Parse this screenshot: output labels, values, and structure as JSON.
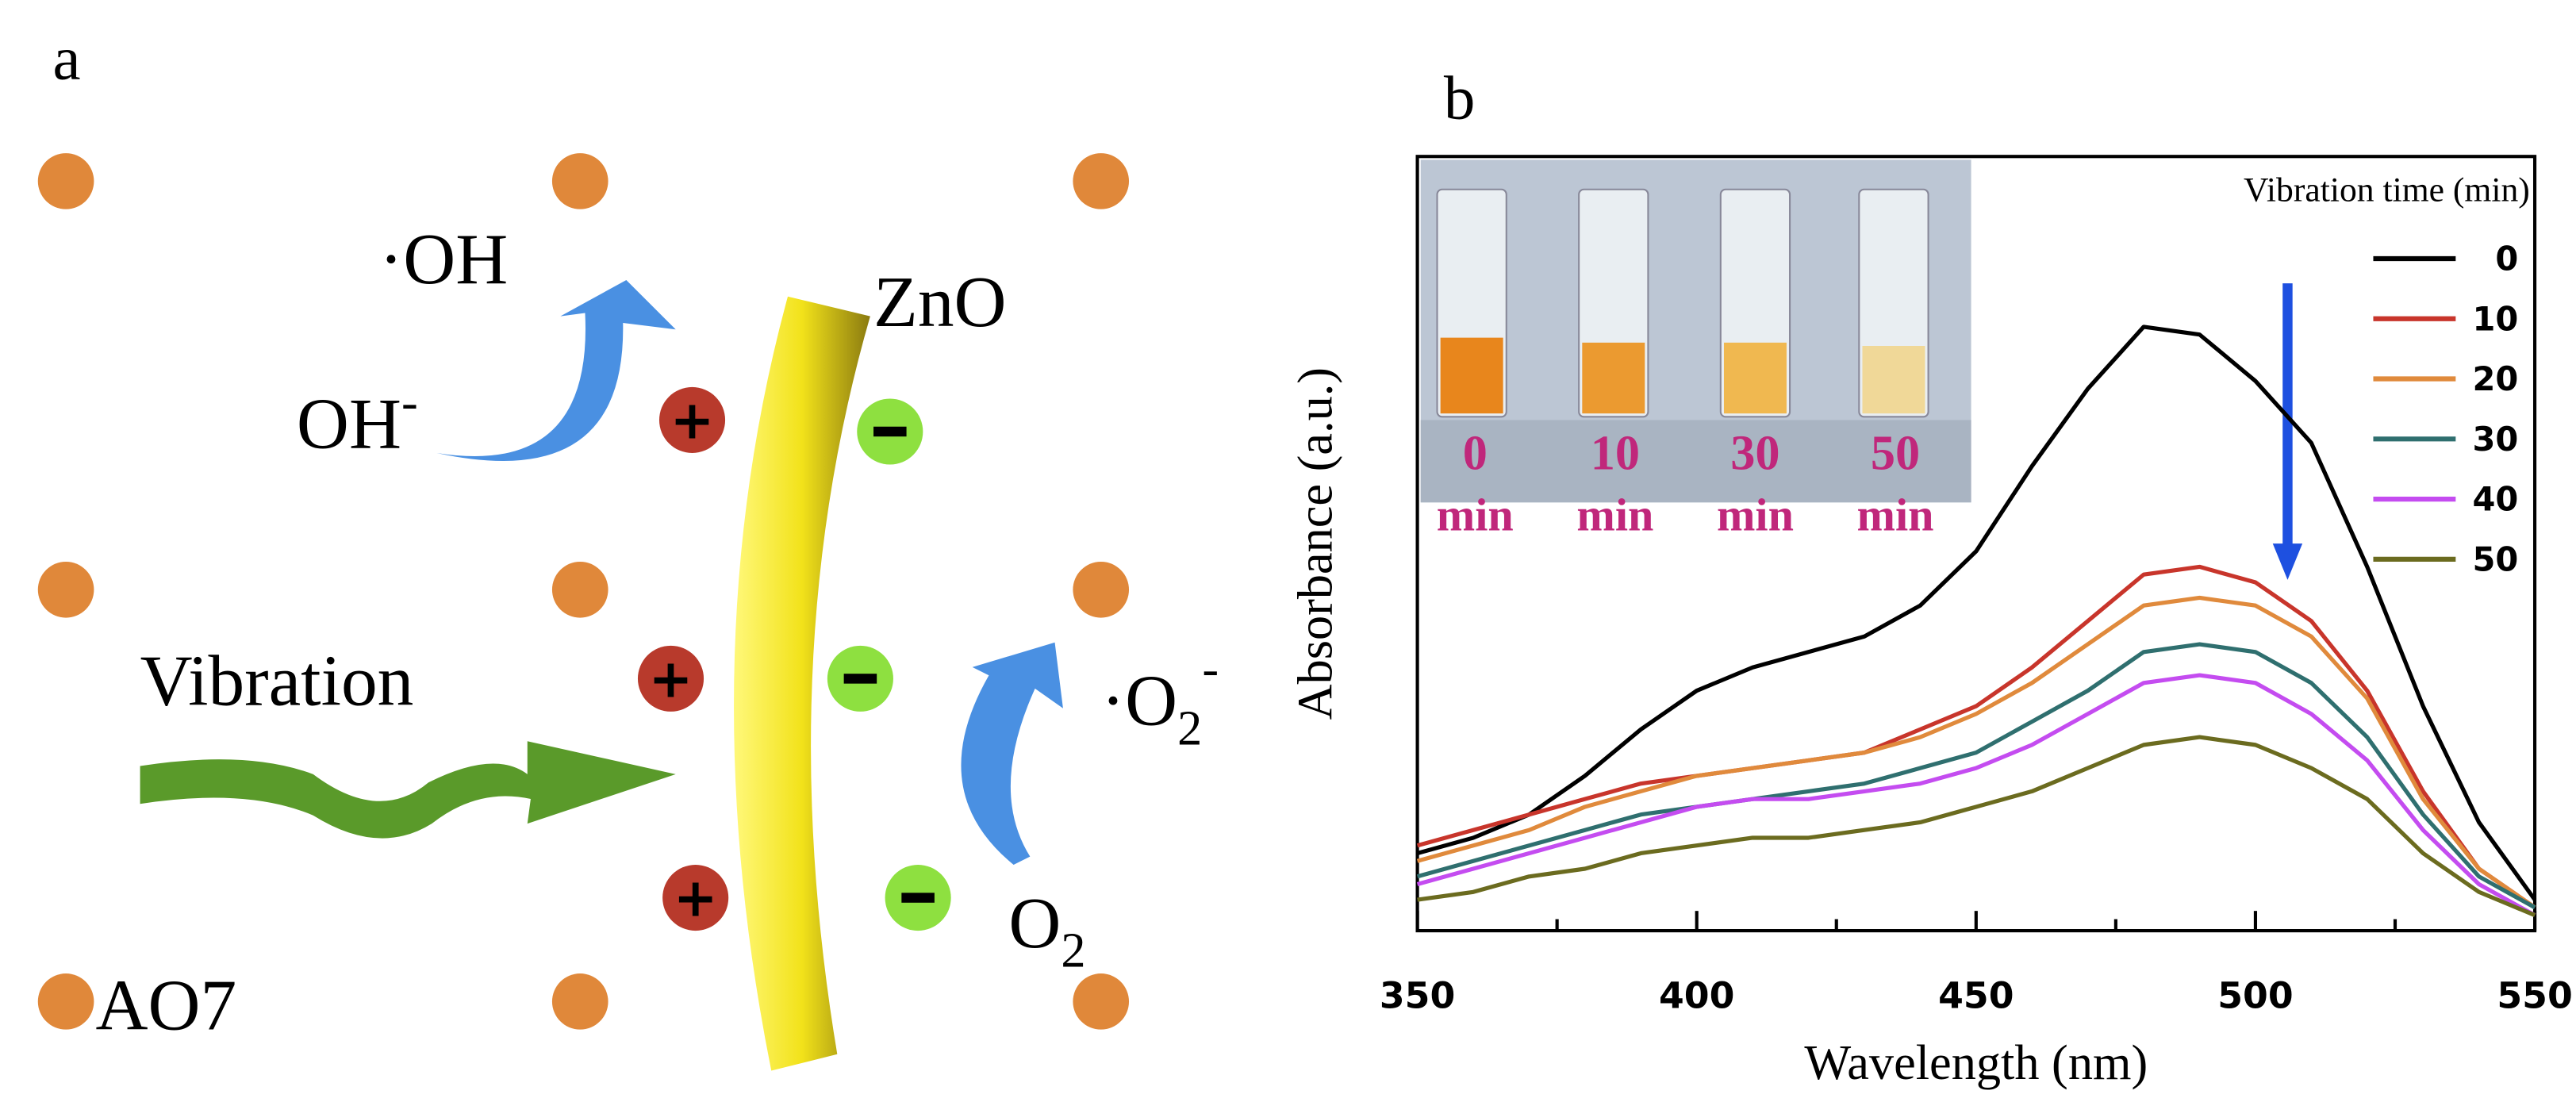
{
  "panel_a": {
    "label": "a",
    "hydroxyl": {
      "text": "·OH"
    },
    "hydroxide": {
      "text": "OH",
      "sup": "-"
    },
    "rod": "ZnO",
    "drive": "Vibration",
    "superoxide": {
      "text": "·O",
      "sub": "2",
      "sup": "-"
    },
    "oxygen": {
      "text": "O",
      "sub": "2"
    },
    "dye": "AO7"
  },
  "chart_data": {
    "type": "line",
    "panel_label": "b",
    "x_label": "Wavelength (nm)",
    "y_label": "Absorbance (a.u.)",
    "legend_title": "Vibration time (min)",
    "inset_labels": [
      [
        "0",
        "min"
      ],
      [
        "10",
        "min"
      ],
      [
        "30",
        "min"
      ],
      [
        "50",
        "min"
      ]
    ],
    "x": [
      350,
      360,
      370,
      380,
      390,
      400,
      410,
      420,
      430,
      440,
      450,
      460,
      470,
      480,
      490,
      500,
      510,
      520,
      530,
      540,
      550
    ],
    "xlim": [
      350,
      550
    ],
    "xticks": [
      350,
      400,
      450,
      500,
      550
    ],
    "xminorticks": [
      375,
      425,
      475,
      525
    ],
    "ylim": [
      0,
      1
    ],
    "series": [
      {
        "name": "0",
        "color": "#000000",
        "values": [
          0.1,
          0.12,
          0.15,
          0.2,
          0.26,
          0.31,
          0.34,
          0.36,
          0.38,
          0.42,
          0.49,
          0.6,
          0.7,
          0.78,
          0.77,
          0.71,
          0.63,
          0.47,
          0.29,
          0.14,
          0.04
        ]
      },
      {
        "name": "10",
        "color": "#c8352b",
        "values": [
          0.11,
          0.13,
          0.15,
          0.17,
          0.19,
          0.2,
          0.21,
          0.22,
          0.23,
          0.26,
          0.29,
          0.34,
          0.4,
          0.46,
          0.47,
          0.45,
          0.4,
          0.31,
          0.18,
          0.08,
          0.03
        ]
      },
      {
        "name": "20",
        "color": "#e08a3c",
        "values": [
          0.09,
          0.11,
          0.13,
          0.16,
          0.18,
          0.2,
          0.21,
          0.22,
          0.23,
          0.25,
          0.28,
          0.32,
          0.37,
          0.42,
          0.43,
          0.42,
          0.38,
          0.3,
          0.17,
          0.08,
          0.03
        ]
      },
      {
        "name": "30",
        "color": "#2f6f6f",
        "values": [
          0.07,
          0.09,
          0.11,
          0.13,
          0.15,
          0.16,
          0.17,
          0.18,
          0.19,
          0.21,
          0.23,
          0.27,
          0.31,
          0.36,
          0.37,
          0.36,
          0.32,
          0.25,
          0.15,
          0.07,
          0.03
        ]
      },
      {
        "name": "40",
        "color": "#c44cf0",
        "values": [
          0.06,
          0.08,
          0.1,
          0.12,
          0.14,
          0.16,
          0.17,
          0.17,
          0.18,
          0.19,
          0.21,
          0.24,
          0.28,
          0.32,
          0.33,
          0.32,
          0.28,
          0.22,
          0.13,
          0.06,
          0.02
        ]
      },
      {
        "name": "50",
        "color": "#6b6b1f",
        "values": [
          0.04,
          0.05,
          0.07,
          0.08,
          0.1,
          0.11,
          0.12,
          0.12,
          0.13,
          0.14,
          0.16,
          0.18,
          0.21,
          0.24,
          0.25,
          0.24,
          0.21,
          0.17,
          0.1,
          0.05,
          0.02
        ]
      }
    ]
  }
}
